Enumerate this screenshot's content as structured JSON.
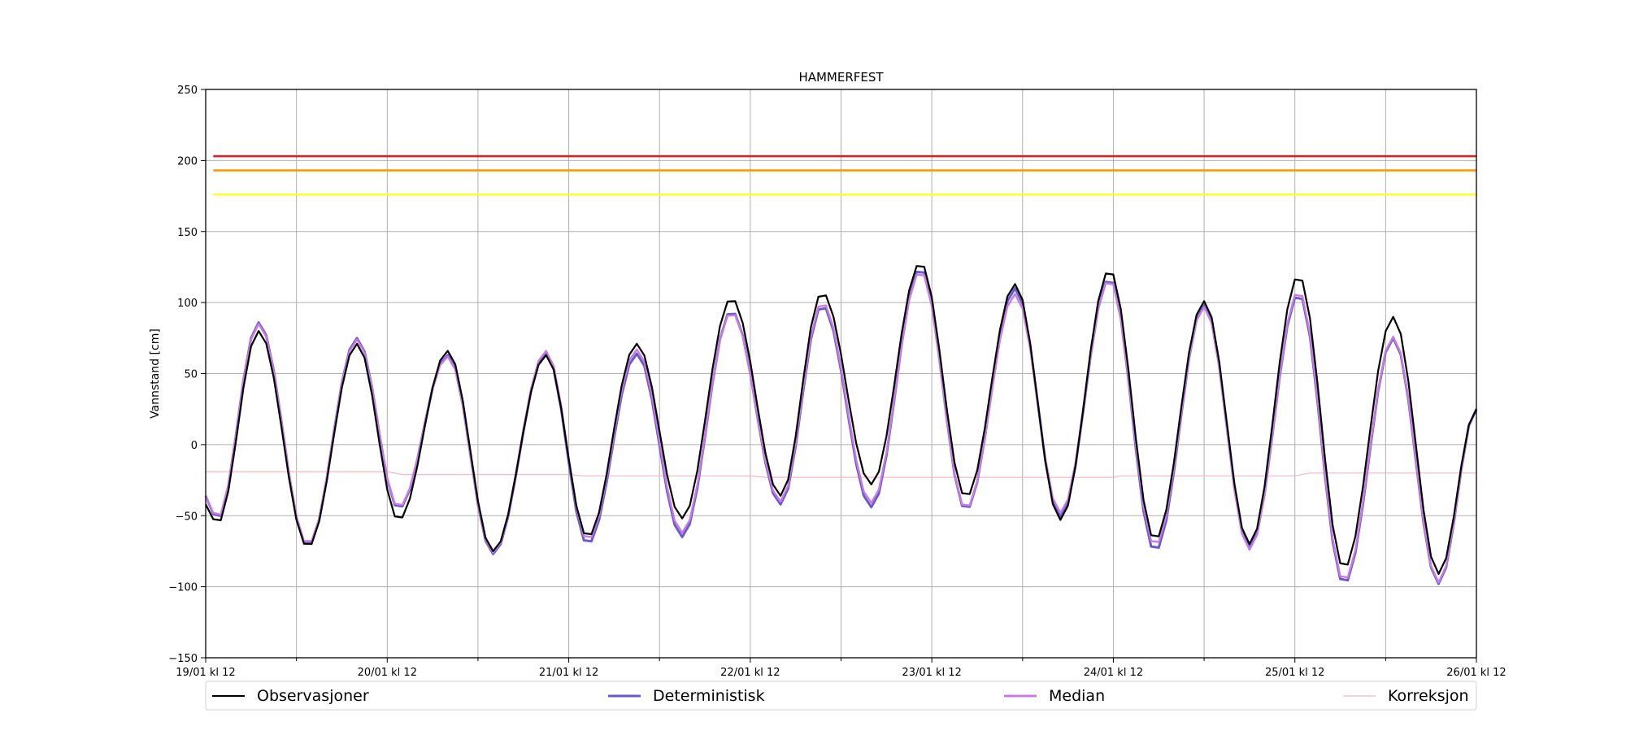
{
  "chart_data": {
    "type": "line",
    "title": "HAMMERFEST",
    "ylabel": "Vannstand [cm]",
    "xlabel": "",
    "ylim": [
      -150,
      250
    ],
    "yticks": [
      250,
      200,
      150,
      100,
      50,
      0,
      -50,
      -100,
      -150
    ],
    "ytick_labels": [
      "250",
      "200",
      "150",
      "100",
      "50",
      "0",
      "−50",
      "−100",
      "−150"
    ],
    "x_unit": "hours since 19/01 kl 12",
    "x_range": [
      0,
      168
    ],
    "x_ticks": [
      {
        "x": 0,
        "label": "19/01 kl 12"
      },
      {
        "x": 24,
        "label": "20/01 kl 12"
      },
      {
        "x": 48,
        "label": "21/01 kl 12"
      },
      {
        "x": 72,
        "label": "22/01 kl 12"
      },
      {
        "x": 96,
        "label": "23/01 kl 12"
      },
      {
        "x": 120,
        "label": "24/01 kl 12"
      },
      {
        "x": 144,
        "label": "25/01 kl 12"
      },
      {
        "x": 168,
        "label": "26/01 kl 12"
      }
    ],
    "minor_gridlines_x": [
      12,
      36,
      60,
      84,
      108,
      132,
      156
    ],
    "grid": true,
    "legend_position": "bottom",
    "colors": {
      "observasjoner": "#000000",
      "deterministisk": "#6a5acd",
      "median": "#c77de0",
      "korreksjon": "#f2b8c6",
      "red_threshold": "#e41a1c",
      "orange_threshold": "#ff9a00",
      "yellow_threshold": "#ffff33"
    },
    "thresholds": [
      {
        "color": "#e41a1c",
        "value": 203
      },
      {
        "color": "#ff9a00",
        "value": 193
      },
      {
        "color": "#ffff33",
        "value": 176
      }
    ],
    "legend": [
      "Observasjoner",
      "Deterministisk",
      "Median",
      "Korreksjon"
    ],
    "extrema": {
      "times": [
        0,
        1.5,
        7,
        13.5,
        20,
        25.5,
        32,
        38,
        45,
        50.5,
        57,
        63,
        69.5,
        76,
        81.5,
        88,
        94.5,
        100.5,
        107,
        113,
        119.5,
        125.5,
        132,
        138,
        144.5,
        150.5,
        157,
        163,
        168
      ],
      "observasjoner": [
        -42,
        -56,
        80,
        -72,
        71,
        -53,
        66,
        -75,
        63,
        -65,
        71,
        -52,
        103,
        -36,
        107,
        -28,
        128,
        -37,
        113,
        -53,
        123,
        -67,
        101,
        -70,
        119,
        -87,
        90,
        -91,
        25
      ],
      "deterministisk": [
        -36,
        -53,
        86,
        -71,
        75,
        -45,
        63,
        -77,
        64,
        -70,
        64,
        -65,
        94,
        -42,
        98,
        -44,
        124,
        -46,
        110,
        -51,
        117,
        -75,
        98,
        -73,
        106,
        -98,
        75,
        -98,
        25
      ],
      "median": [
        -36,
        -52,
        85,
        -70,
        74,
        -44,
        62,
        -76,
        66,
        -67,
        67,
        -62,
        93,
        -40,
        100,
        -41,
        122,
        -45,
        106,
        -48,
        116,
        -71,
        97,
        -74,
        108,
        -96,
        76,
        -97,
        25
      ]
    },
    "korreksjon": {
      "x": [
        0,
        24,
        26,
        48,
        50,
        72,
        74,
        96,
        120,
        121,
        144,
        146,
        168
      ],
      "y": [
        -19,
        -19,
        -21,
        -21,
        -22,
        -22,
        -23,
        -23,
        -23,
        -22,
        -22,
        -20,
        -20
      ]
    }
  }
}
